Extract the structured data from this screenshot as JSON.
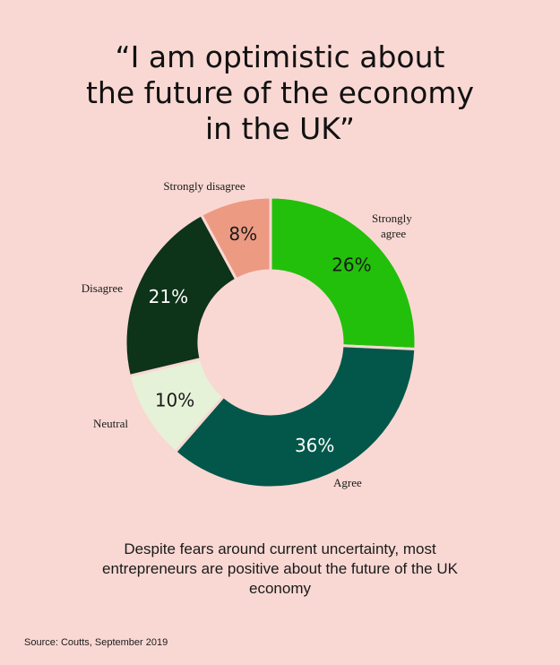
{
  "title": "“I am optimistic about\nthe future of the economy\nin the UK”",
  "subtitle": "Despite fears around current uncertainty, most\nentrepreneurs are positive about the future of the UK\neconomy",
  "source": "Source: Coutts, September 2019",
  "colors": {
    "background": "#f9d8d3",
    "strongly_agree": "#22c00a",
    "agree": "#02574a",
    "neutral": "#e6f2d8",
    "disagree": "#0d3319",
    "strongly_disagree": "#ed9a83",
    "divider": "#f9d8d3"
  },
  "chart_data": {
    "type": "pie",
    "variant": "donut",
    "title": "“I am optimistic about the future of the economy in the UK”",
    "slices": [
      {
        "label": "Strongly agree",
        "label_lines": [
          "Strongly",
          "agree"
        ],
        "value": 26,
        "display": "26%",
        "color": "#22c00a",
        "text_color": "#1a1a1a"
      },
      {
        "label": "Agree",
        "label_lines": [
          "Agree"
        ],
        "value": 36,
        "display": "36%",
        "color": "#02574a",
        "text_color": "#ffffff"
      },
      {
        "label": "Neutral",
        "label_lines": [
          "Neutral"
        ],
        "value": 10,
        "display": "10%",
        "color": "#e6f2d8",
        "text_color": "#1a1a1a"
      },
      {
        "label": "Disagree",
        "label_lines": [
          "Disagree"
        ],
        "value": 21,
        "display": "21%",
        "color": "#0d3319",
        "text_color": "#ffffff"
      },
      {
        "label": "Strongly disagree",
        "label_lines": [
          "Strongly disagree"
        ],
        "value": 8,
        "display": "8%",
        "color": "#ed9a83",
        "text_color": "#1a1a1a"
      }
    ],
    "start": "12 o'clock",
    "direction": "clockwise"
  }
}
